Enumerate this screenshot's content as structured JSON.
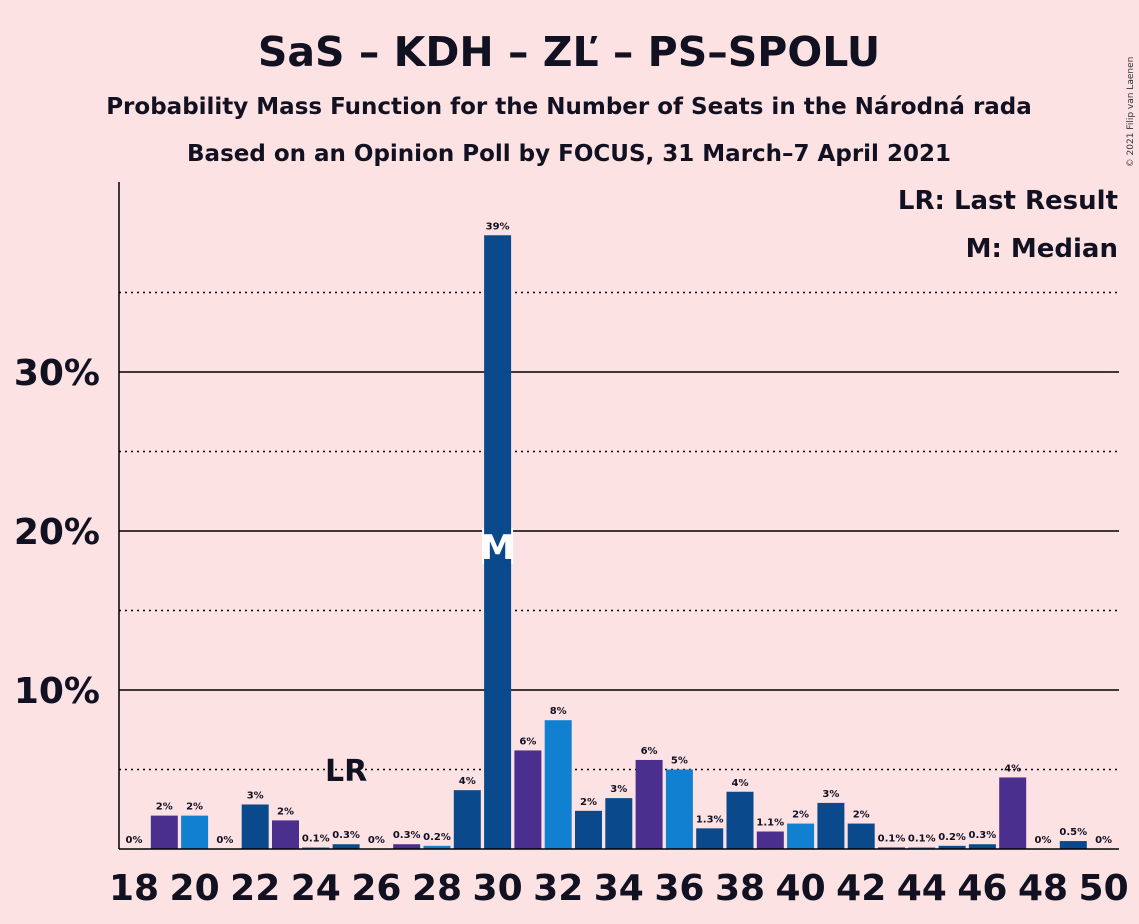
{
  "chart_data": {
    "type": "bar",
    "title": "SaS – KDH – ZĽ – PS–SPOLU",
    "subtitle": "Probability Mass Function for the Number of Seats in the Národná rada",
    "subtitle2": "Based on an Opinion Poll by FOCUS, 31 March–7 April 2021",
    "copyright": "© 2021 Filip van Laenen",
    "legend": {
      "lr": "LR: Last Result",
      "m": "M: Median",
      "position": "top-right"
    },
    "xlabel": "",
    "ylabel": "",
    "ylim": [
      0,
      41
    ],
    "yticks": [
      10,
      20,
      30
    ],
    "ytick_labels": [
      "10%",
      "20%",
      "30%"
    ],
    "dotted_gridlines": [
      5,
      15,
      25,
      35
    ],
    "xticks": [
      18,
      20,
      22,
      24,
      26,
      28,
      30,
      32,
      34,
      36,
      38,
      40,
      42,
      44,
      46,
      48,
      50
    ],
    "last_result_seat": 25,
    "last_result_label": "LR",
    "median_seat": 30,
    "median_label": "M",
    "bar_colors": [
      "#2D3A8C",
      "#0A4A8C",
      "#4B2F8F",
      "#1280D0"
    ],
    "bars": [
      {
        "seat": 18,
        "value": 0,
        "label": "0%",
        "color": "#0A4A8C"
      },
      {
        "seat": 19,
        "value": 2.1,
        "label": "2%",
        "color": "#4B2F8F"
      },
      {
        "seat": 20,
        "value": 2.1,
        "label": "2%",
        "color": "#1280D0"
      },
      {
        "seat": 21,
        "value": 0,
        "label": "0%",
        "color": "#0A4A8C"
      },
      {
        "seat": 22,
        "value": 2.8,
        "label": "3%",
        "color": "#0A4A8C"
      },
      {
        "seat": 23,
        "value": 1.8,
        "label": "2%",
        "color": "#4B2F8F"
      },
      {
        "seat": 24,
        "value": 0.1,
        "label": "0.1%",
        "color": "#1280D0"
      },
      {
        "seat": 25,
        "value": 0.3,
        "label": "0.3%",
        "color": "#0A4A8C"
      },
      {
        "seat": 26,
        "value": 0,
        "label": "0%",
        "color": "#0A4A8C"
      },
      {
        "seat": 27,
        "value": 0.3,
        "label": "0.3%",
        "color": "#4B2F8F"
      },
      {
        "seat": 28,
        "value": 0.2,
        "label": "0.2%",
        "color": "#1280D0"
      },
      {
        "seat": 29,
        "value": 3.7,
        "label": "4%",
        "color": "#0A4A8C"
      },
      {
        "seat": 30,
        "value": 38.6,
        "label": "39%",
        "color": "#0A4A8C"
      },
      {
        "seat": 31,
        "value": 6.2,
        "label": "6%",
        "color": "#4B2F8F"
      },
      {
        "seat": 32,
        "value": 8.1,
        "label": "8%",
        "color": "#1280D0"
      },
      {
        "seat": 33,
        "value": 2.4,
        "label": "2%",
        "color": "#0A4A8C"
      },
      {
        "seat": 34,
        "value": 3.2,
        "label": "3%",
        "color": "#0A4A8C"
      },
      {
        "seat": 35,
        "value": 5.6,
        "label": "6%",
        "color": "#4B2F8F"
      },
      {
        "seat": 36,
        "value": 5.0,
        "label": "5%",
        "color": "#1280D0"
      },
      {
        "seat": 37,
        "value": 1.3,
        "label": "1.3%",
        "color": "#0A4A8C"
      },
      {
        "seat": 38,
        "value": 3.6,
        "label": "4%",
        "color": "#0A4A8C"
      },
      {
        "seat": 39,
        "value": 1.1,
        "label": "1.1%",
        "color": "#4B2F8F"
      },
      {
        "seat": 40,
        "value": 1.6,
        "label": "2%",
        "color": "#1280D0"
      },
      {
        "seat": 41,
        "value": 2.9,
        "label": "3%",
        "color": "#0A4A8C"
      },
      {
        "seat": 42,
        "value": 1.6,
        "label": "2%",
        "color": "#0A4A8C"
      },
      {
        "seat": 43,
        "value": 0.1,
        "label": "0.1%",
        "color": "#4B2F8F"
      },
      {
        "seat": 44,
        "value": 0.1,
        "label": "0.1%",
        "color": "#1280D0"
      },
      {
        "seat": 45,
        "value": 0.2,
        "label": "0.2%",
        "color": "#0A4A8C"
      },
      {
        "seat": 46,
        "value": 0.3,
        "label": "0.3%",
        "color": "#0A4A8C"
      },
      {
        "seat": 47,
        "value": 4.5,
        "label": "4%",
        "color": "#4B2F8F"
      },
      {
        "seat": 48,
        "value": 0,
        "label": "0%",
        "color": "#1280D0"
      },
      {
        "seat": 49,
        "value": 0.5,
        "label": "0.5%",
        "color": "#0A4A8C"
      },
      {
        "seat": 50,
        "value": 0,
        "label": "0%",
        "color": "#0A4A8C"
      }
    ]
  }
}
